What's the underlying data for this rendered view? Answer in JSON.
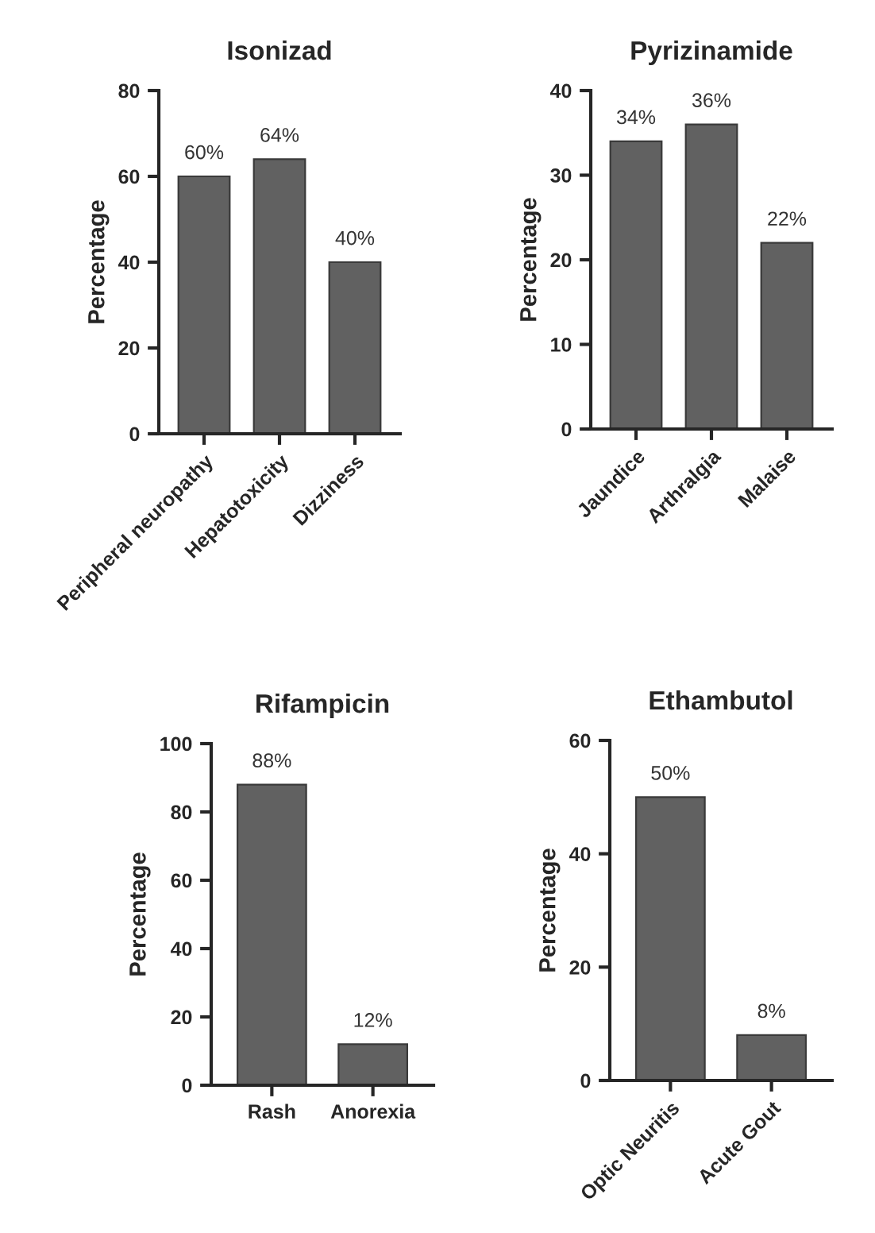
{
  "chart_data": [
    {
      "type": "bar",
      "title": "Isonizad",
      "ylabel": "Percentage",
      "categories": [
        "Peripheral neuropathy",
        "Hepatotoxicity",
        "Dizziness"
      ],
      "values": [
        60,
        64,
        40
      ],
      "value_labels": [
        "60%",
        "64%",
        "40%"
      ],
      "color": "#616161",
      "ylim": [
        0,
        80
      ],
      "yticks": [
        0,
        20,
        40,
        60,
        80
      ],
      "grid": false,
      "legend": false
    },
    {
      "type": "bar",
      "title": "Pyrizinamide",
      "ylabel": "Percentage",
      "categories": [
        "Jaundice",
        "Arthralgia",
        "Malaise"
      ],
      "values": [
        34,
        36,
        22
      ],
      "value_labels": [
        "34%",
        "36%",
        "22%"
      ],
      "color": "#616161",
      "ylim": [
        0,
        40
      ],
      "yticks": [
        0,
        10,
        20,
        30,
        40
      ],
      "grid": false,
      "legend": false
    },
    {
      "type": "bar",
      "title": "Rifampicin",
      "ylabel": "Percentage",
      "categories": [
        "Rash",
        "Anorexia"
      ],
      "values": [
        88,
        12
      ],
      "value_labels": [
        "88%",
        "12%"
      ],
      "color": "#616161",
      "ylim": [
        0,
        100
      ],
      "yticks": [
        0,
        20,
        40,
        60,
        80,
        100
      ],
      "grid": false,
      "legend": false
    },
    {
      "type": "bar",
      "title": "Ethambutol",
      "ylabel": "Percentage",
      "categories": [
        "Optic Neuritis",
        "Acute Gout"
      ],
      "values": [
        50,
        8
      ],
      "value_labels": [
        "50%",
        "8%"
      ],
      "color": "#616161",
      "ylim": [
        0,
        60
      ],
      "yticks": [
        0,
        20,
        40,
        60
      ],
      "grid": false,
      "legend": false
    }
  ]
}
